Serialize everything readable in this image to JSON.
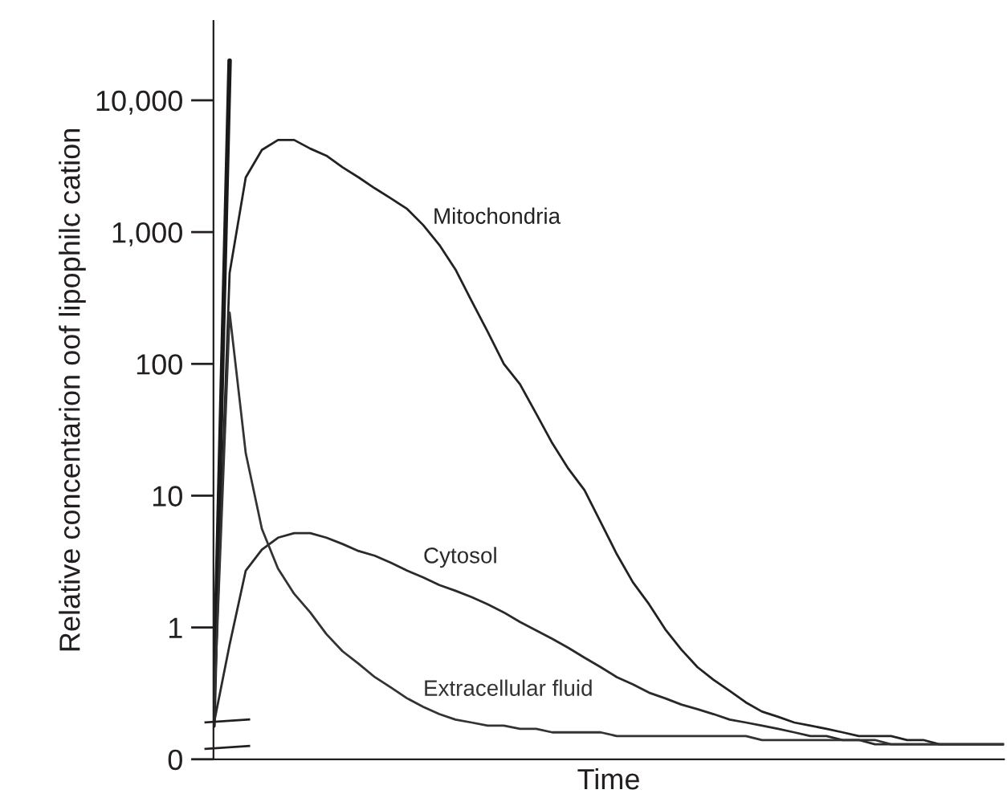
{
  "chart_data": {
    "type": "line",
    "xlabel": "Time",
    "ylabel": "Relative concentarion oof lipophilc cation",
    "categories": [
      null,
      null,
      null,
      null,
      null,
      null,
      null,
      null,
      null,
      null,
      null,
      null,
      null,
      null,
      null,
      null,
      null,
      null,
      null,
      null,
      null,
      null,
      null,
      null,
      null,
      null,
      null,
      null,
      null,
      null,
      null,
      null,
      null,
      null,
      null,
      null,
      null,
      null,
      null,
      null,
      null,
      null,
      null,
      null,
      null,
      null,
      null,
      null,
      null,
      null
    ],
    "series": [
      {
        "color": "#1a1a1a",
        "values": [
          0.18,
          20000,
          null,
          null,
          null,
          null,
          null,
          null,
          null,
          null,
          null,
          null,
          null,
          null,
          null,
          null,
          null,
          null,
          null,
          null,
          null,
          null,
          null,
          null,
          null,
          null,
          null,
          null,
          null,
          null,
          null,
          null,
          null,
          null,
          null,
          null,
          null,
          null,
          null,
          null,
          null,
          null,
          null,
          null,
          null,
          null,
          null,
          null,
          null,
          null
        ]
      },
      {
        "name": "Mitochondria",
        "color": "#222222",
        "values": [
          0.18,
          490,
          2600,
          4200,
          5000,
          5000,
          4300,
          3800,
          3100,
          2600,
          2150,
          1800,
          1500,
          1130,
          800,
          520,
          300,
          175,
          100,
          70,
          42,
          25,
          16,
          11,
          6.3,
          3.6,
          2.2,
          1.5,
          0.97,
          0.68,
          0.5,
          0.4,
          0.33,
          0.27,
          0.23,
          0.21,
          0.19,
          0.18,
          0.17,
          0.16,
          0.15,
          0.15,
          0.15,
          0.14,
          0.14,
          0.13,
          0.13,
          0.13,
          0.13,
          0.13
        ]
      },
      {
        "name": "Cytosol",
        "color": "#2a2a2a",
        "values": [
          0.18,
          0.74,
          2.7,
          3.9,
          4.8,
          5.2,
          5.2,
          4.8,
          4.3,
          3.8,
          3.5,
          3.1,
          2.7,
          2.4,
          2.1,
          1.9,
          1.7,
          1.5,
          1.3,
          1.1,
          0.95,
          0.82,
          0.7,
          0.59,
          0.5,
          0.42,
          0.37,
          0.32,
          0.29,
          0.26,
          0.24,
          0.22,
          0.2,
          0.19,
          0.18,
          0.17,
          0.16,
          0.15,
          0.15,
          0.14,
          0.14,
          0.13,
          0.13,
          0.13,
          0.13,
          0.13,
          0.13,
          0.13,
          0.13,
          0.13
        ]
      },
      {
        "name": "Extracellular fluid",
        "color": "#333333",
        "values": [
          0.18,
          245,
          21,
          5.6,
          2.8,
          1.8,
          1.3,
          0.89,
          0.66,
          0.53,
          0.42,
          0.35,
          0.29,
          0.25,
          0.22,
          0.2,
          0.19,
          0.18,
          0.18,
          0.17,
          0.17,
          0.16,
          0.16,
          0.16,
          0.16,
          0.15,
          0.15,
          0.15,
          0.15,
          0.15,
          0.15,
          0.15,
          0.15,
          0.15,
          0.14,
          0.14,
          0.14,
          0.14,
          0.14,
          0.14,
          0.14,
          0.14,
          0.13,
          0.13,
          0.13,
          0.13,
          0.13,
          0.13,
          0.13,
          0.13
        ]
      }
    ],
    "log": "y",
    "ylim": [
      0.1,
      40000
    ],
    "yticks": [
      {
        "value": 0.1,
        "label": "0"
      },
      1,
      10,
      100,
      {
        "value": 1000,
        "label": "1,000"
      },
      {
        "value": 10000,
        "label": "10,000"
      }
    ],
    "tick_labels": "y",
    "grid": false,
    "legend": false
  }
}
